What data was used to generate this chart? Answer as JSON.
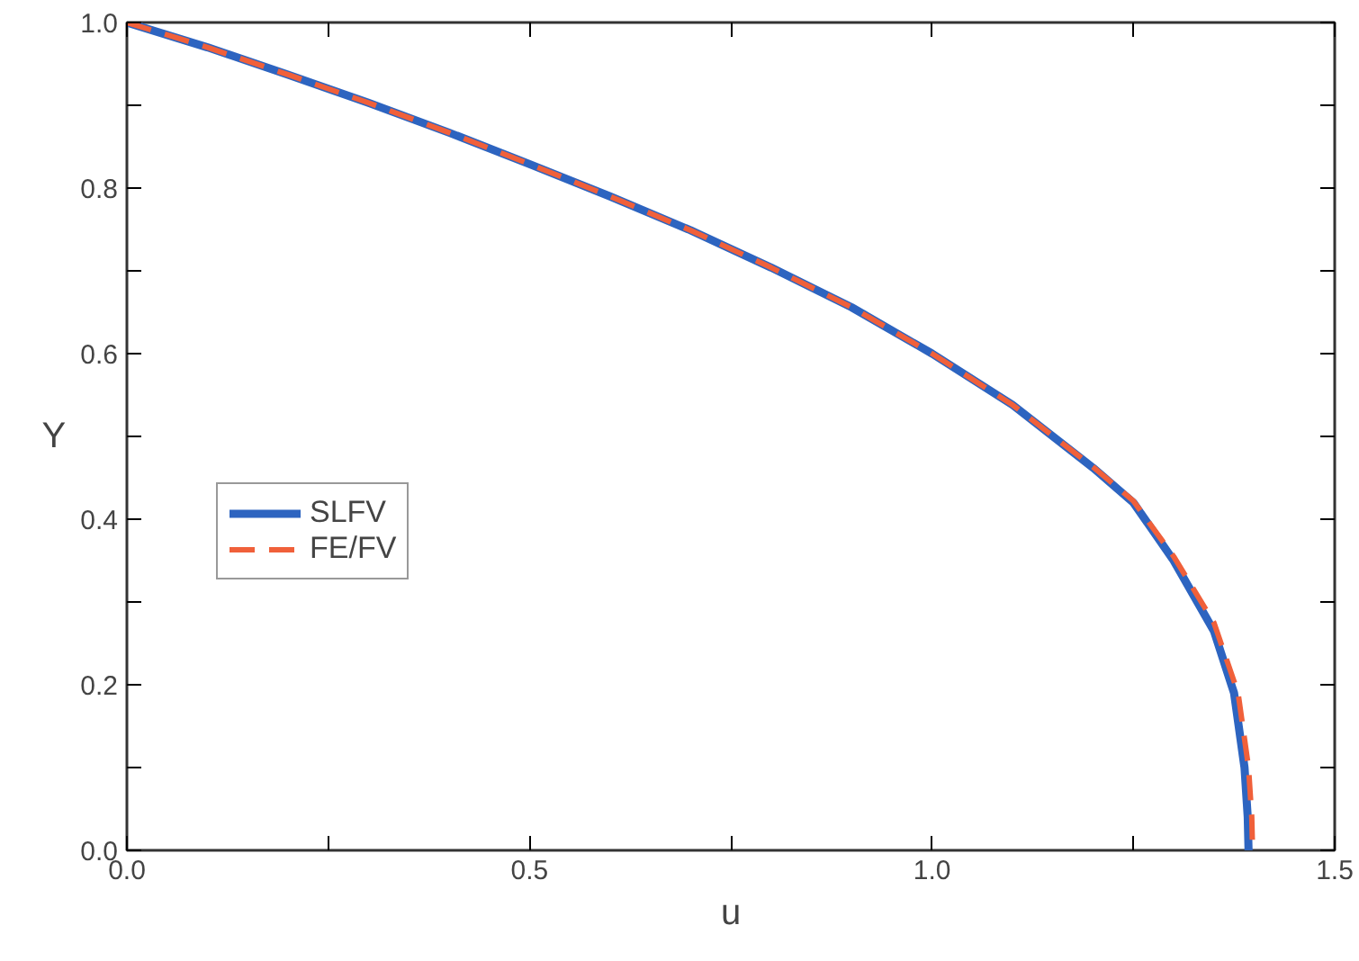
{
  "chart_data": {
    "type": "line",
    "xlabel": "u",
    "ylabel": "Y",
    "xlim": [
      0,
      1.5
    ],
    "ylim": [
      0,
      1
    ],
    "xticks": [
      {
        "value": 0,
        "label": "0.0"
      },
      {
        "value": 0.25,
        "label": null
      },
      {
        "value": 0.5,
        "label": "0.5"
      },
      {
        "value": 0.75,
        "label": null
      },
      {
        "value": 1,
        "label": "1.0"
      },
      {
        "value": 1.25,
        "label": null
      },
      {
        "value": 1.5,
        "label": "1.5"
      }
    ],
    "yticks": [
      {
        "value": 0,
        "label": "0.0"
      },
      {
        "value": 0.1,
        "label": null
      },
      {
        "value": 0.2,
        "label": "0.2"
      },
      {
        "value": 0.3,
        "label": null
      },
      {
        "value": 0.4,
        "label": "0.4"
      },
      {
        "value": 0.5,
        "label": null
      },
      {
        "value": 0.6,
        "label": "0.6"
      },
      {
        "value": 0.7,
        "label": null
      },
      {
        "value": 0.8,
        "label": "0.8"
      },
      {
        "value": 0.9,
        "label": null
      },
      {
        "value": 1,
        "label": "1.0"
      }
    ],
    "grid": false,
    "legend": "left",
    "marker": "none",
    "series": [
      {
        "name": "SLFV",
        "color": "#2d64c0",
        "line_style": "solid",
        "x": [
          0,
          0.1,
          0.2,
          0.3,
          0.4,
          0.5,
          0.6,
          0.7,
          0.8,
          0.9,
          1.0,
          1.1,
          1.2,
          1.25,
          1.3,
          1.35,
          1.375,
          1.388,
          1.392,
          1.393
        ],
        "values": [
          1,
          0.97,
          0.937,
          0.903,
          0.867,
          0.829,
          0.79,
          0.749,
          0.704,
          0.656,
          0.6,
          0.538,
          0.462,
          0.42,
          0.35,
          0.265,
          0.19,
          0.1,
          0.04,
          0
        ]
      },
      {
        "name": "FE/FV",
        "color": "#f0603a",
        "line_style": "dashed",
        "x": [
          0,
          0.1,
          0.2,
          0.3,
          0.4,
          0.5,
          0.6,
          0.7,
          0.8,
          0.9,
          1.0,
          1.1,
          1.2,
          1.25,
          1.3,
          1.35,
          1.38,
          1.393,
          1.397,
          1.398
        ],
        "values": [
          1,
          0.97,
          0.937,
          0.903,
          0.867,
          0.829,
          0.79,
          0.749,
          0.704,
          0.656,
          0.6,
          0.538,
          0.463,
          0.422,
          0.355,
          0.275,
          0.19,
          0.1,
          0.04,
          0
        ]
      }
    ]
  }
}
